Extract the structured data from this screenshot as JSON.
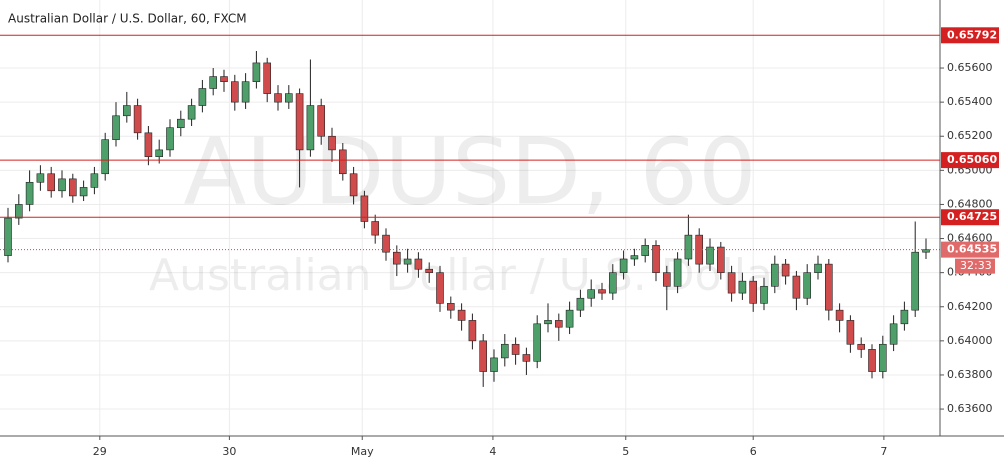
{
  "chart_data": {
    "type": "candlestick",
    "title": "Australian Dollar / U.S. Dollar, 60, FXCM",
    "watermark": [
      "AUDUSD, 60",
      "Australian Dollar / U.S. Dollar"
    ],
    "up_color": "#4e9f6a",
    "down_color": "#d04b4b",
    "wick_color": "#222222",
    "ylim": [
      0.63442,
      0.65999
    ],
    "yticks": [
      {
        "value": 0.656,
        "label": "0.65600"
      },
      {
        "value": 0.654,
        "label": "0.65400"
      },
      {
        "value": 0.652,
        "label": "0.65200"
      },
      {
        "value": 0.65,
        "label": "0.65000"
      },
      {
        "value": 0.648,
        "label": "0.64800"
      },
      {
        "value": 0.646,
        "label": "0.64600"
      },
      {
        "value": 0.644,
        "label": "0.64400"
      },
      {
        "value": 0.642,
        "label": "0.64200"
      },
      {
        "value": 0.64,
        "label": "0.64000"
      },
      {
        "value": 0.638,
        "label": "0.63800"
      },
      {
        "value": 0.636,
        "label": "0.63600"
      }
    ],
    "xticks": [
      {
        "value": 8.5,
        "label": "29"
      },
      {
        "value": 20.5,
        "label": "30"
      },
      {
        "value": 32.8,
        "label": "May"
      },
      {
        "value": 44.9,
        "label": "4"
      },
      {
        "value": 57.2,
        "label": "5"
      },
      {
        "value": 69.0,
        "label": "6"
      },
      {
        "value": 81.1,
        "label": "7"
      }
    ],
    "grid": true,
    "hlines": [
      {
        "value": 0.65792,
        "label": "0.65792"
      },
      {
        "value": 0.6506,
        "label": "0.65060"
      },
      {
        "value": 0.64725,
        "label": "0.64725"
      }
    ],
    "hline_color": "#d42020",
    "last_price": {
      "value": 0.64535,
      "label": "0.64535"
    },
    "countdown": "32:33",
    "candles": [
      [
        0.645,
        0.6478,
        0.6446,
        0.6472
      ],
      [
        0.6472,
        0.6486,
        0.6468,
        0.648
      ],
      [
        0.648,
        0.65,
        0.6476,
        0.6493
      ],
      [
        0.6493,
        0.6503,
        0.6488,
        0.6498
      ],
      [
        0.6498,
        0.6502,
        0.6484,
        0.6488
      ],
      [
        0.6488,
        0.65,
        0.6484,
        0.6495
      ],
      [
        0.6495,
        0.6498,
        0.6481,
        0.6485
      ],
      [
        0.6485,
        0.6494,
        0.6482,
        0.649
      ],
      [
        0.649,
        0.6502,
        0.6486,
        0.6498
      ],
      [
        0.6498,
        0.6522,
        0.6494,
        0.6518
      ],
      [
        0.6518,
        0.654,
        0.6514,
        0.6532
      ],
      [
        0.6532,
        0.6546,
        0.6528,
        0.6538
      ],
      [
        0.6538,
        0.6542,
        0.6518,
        0.6522
      ],
      [
        0.6522,
        0.6526,
        0.6503,
        0.6508
      ],
      [
        0.6508,
        0.6518,
        0.6504,
        0.6512
      ],
      [
        0.6512,
        0.653,
        0.6508,
        0.6525
      ],
      [
        0.6525,
        0.6535,
        0.652,
        0.653
      ],
      [
        0.653,
        0.6542,
        0.6526,
        0.6538
      ],
      [
        0.6538,
        0.6553,
        0.6534,
        0.6548
      ],
      [
        0.6548,
        0.656,
        0.6544,
        0.6555
      ],
      [
        0.6555,
        0.6559,
        0.6546,
        0.6552
      ],
      [
        0.6552,
        0.6556,
        0.6535,
        0.654
      ],
      [
        0.654,
        0.6557,
        0.6536,
        0.6552
      ],
      [
        0.6552,
        0.657,
        0.6548,
        0.6563
      ],
      [
        0.6563,
        0.6566,
        0.654,
        0.6545
      ],
      [
        0.6545,
        0.655,
        0.6535,
        0.654
      ],
      [
        0.654,
        0.655,
        0.6536,
        0.6545
      ],
      [
        0.6545,
        0.6548,
        0.649,
        0.6512
      ],
      [
        0.6512,
        0.6565,
        0.6508,
        0.6538
      ],
      [
        0.6538,
        0.6542,
        0.6515,
        0.652
      ],
      [
        0.652,
        0.6525,
        0.6505,
        0.6512
      ],
      [
        0.6512,
        0.6516,
        0.6494,
        0.6498
      ],
      [
        0.6498,
        0.6502,
        0.648,
        0.6485
      ],
      [
        0.6485,
        0.6488,
        0.6466,
        0.647
      ],
      [
        0.647,
        0.6474,
        0.6457,
        0.6462
      ],
      [
        0.6462,
        0.6466,
        0.6447,
        0.6452
      ],
      [
        0.6452,
        0.6456,
        0.6438,
        0.6445
      ],
      [
        0.6445,
        0.6454,
        0.644,
        0.6448
      ],
      [
        0.6448,
        0.6452,
        0.6437,
        0.6442
      ],
      [
        0.6442,
        0.6446,
        0.6434,
        0.644
      ],
      [
        0.644,
        0.6444,
        0.6417,
        0.6422
      ],
      [
        0.6422,
        0.6426,
        0.6413,
        0.6418
      ],
      [
        0.6418,
        0.6422,
        0.6406,
        0.6412
      ],
      [
        0.6412,
        0.6416,
        0.6395,
        0.64
      ],
      [
        0.64,
        0.6404,
        0.6373,
        0.6382
      ],
      [
        0.6382,
        0.6395,
        0.6376,
        0.639
      ],
      [
        0.639,
        0.6404,
        0.6385,
        0.6398
      ],
      [
        0.6398,
        0.6402,
        0.6386,
        0.6392
      ],
      [
        0.6392,
        0.6396,
        0.638,
        0.6388
      ],
      [
        0.6388,
        0.6415,
        0.6384,
        0.641
      ],
      [
        0.641,
        0.6422,
        0.6405,
        0.6412
      ],
      [
        0.6412,
        0.6416,
        0.64,
        0.6408
      ],
      [
        0.6408,
        0.6423,
        0.6404,
        0.6418
      ],
      [
        0.6418,
        0.643,
        0.6414,
        0.6425
      ],
      [
        0.6425,
        0.6436,
        0.642,
        0.643
      ],
      [
        0.643,
        0.6434,
        0.6424,
        0.6428
      ],
      [
        0.6428,
        0.6445,
        0.6424,
        0.644
      ],
      [
        0.644,
        0.6453,
        0.6436,
        0.6448
      ],
      [
        0.6448,
        0.6454,
        0.6444,
        0.645
      ],
      [
        0.645,
        0.646,
        0.6446,
        0.6456
      ],
      [
        0.6456,
        0.6459,
        0.6435,
        0.644
      ],
      [
        0.644,
        0.6444,
        0.6418,
        0.6432
      ],
      [
        0.6432,
        0.6452,
        0.6428,
        0.6448
      ],
      [
        0.6448,
        0.6474,
        0.6444,
        0.6462
      ],
      [
        0.6462,
        0.6466,
        0.644,
        0.6445
      ],
      [
        0.6445,
        0.646,
        0.6441,
        0.6455
      ],
      [
        0.6455,
        0.6458,
        0.6436,
        0.644
      ],
      [
        0.644,
        0.6444,
        0.6423,
        0.6428
      ],
      [
        0.6428,
        0.644,
        0.6424,
        0.6435
      ],
      [
        0.6435,
        0.6438,
        0.6417,
        0.6422
      ],
      [
        0.6422,
        0.6437,
        0.6418,
        0.6432
      ],
      [
        0.6432,
        0.645,
        0.6428,
        0.6445
      ],
      [
        0.6445,
        0.6448,
        0.6433,
        0.6438
      ],
      [
        0.6438,
        0.6441,
        0.6418,
        0.6425
      ],
      [
        0.6425,
        0.6445,
        0.6421,
        0.644
      ],
      [
        0.644,
        0.645,
        0.6436,
        0.6445
      ],
      [
        0.6445,
        0.6448,
        0.6412,
        0.6418
      ],
      [
        0.6418,
        0.6422,
        0.6405,
        0.6412
      ],
      [
        0.6412,
        0.6415,
        0.6393,
        0.6398
      ],
      [
        0.6398,
        0.6402,
        0.639,
        0.6395
      ],
      [
        0.6395,
        0.6398,
        0.6378,
        0.6382
      ],
      [
        0.6382,
        0.6403,
        0.6378,
        0.6398
      ],
      [
        0.6398,
        0.6415,
        0.6394,
        0.641
      ],
      [
        0.641,
        0.6423,
        0.6406,
        0.6418
      ],
      [
        0.6418,
        0.647,
        0.6414,
        0.6452
      ],
      [
        0.6452,
        0.646,
        0.6448,
        0.64535
      ]
    ]
  }
}
